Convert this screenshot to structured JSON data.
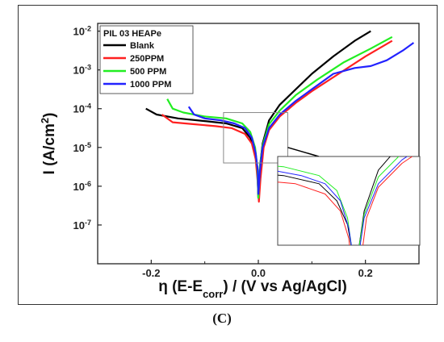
{
  "caption": "(C)",
  "colors": {
    "blank": "#000000",
    "ppm250": "#ff2020",
    "ppm500": "#22ee22",
    "ppm1000": "#2222ff",
    "box": "#888888"
  },
  "chart_data": {
    "type": "line",
    "title": "",
    "xlabel": "η (E-E_corr) / (V vs Ag/AgCl)",
    "xlabel_parts": {
      "main": "η (E-E",
      "sub": "corr",
      "rest": ") / (V vs Ag/AgCl)"
    },
    "ylabel": "I (A/cm²)",
    "ylabel_parts": {
      "main": "I (A/cm",
      "sup": "2",
      "rest": ")"
    },
    "xlim": [
      -0.3,
      0.3
    ],
    "ylim_log10": [
      -8,
      -1.8
    ],
    "y_scale": "log",
    "x_ticks": [
      -0.2,
      0.0,
      0.2
    ],
    "x_tick_labels": [
      "-0.2",
      "0.0",
      "0.2"
    ],
    "y_ticks_log10": [
      -7,
      -6,
      -5,
      -4,
      -3,
      -2
    ],
    "y_tick_labels": [
      {
        "base": "10",
        "exp": "-7"
      },
      {
        "base": "10",
        "exp": "-6"
      },
      {
        "base": "10",
        "exp": "-5"
      },
      {
        "base": "10",
        "exp": "-4"
      },
      {
        "base": "10",
        "exp": "-3"
      },
      {
        "base": "10",
        "exp": "-2"
      }
    ],
    "legend_title": "PIL 03 HEAPe",
    "legend_position": "top-left",
    "series": [
      {
        "name": "Blank",
        "color": "#000000",
        "x": [
          -0.21,
          -0.19,
          -0.15,
          -0.1,
          -0.06,
          -0.03,
          -0.015,
          -0.006,
          -0.002,
          0.0,
          0.003,
          0.008,
          0.02,
          0.04,
          0.07,
          0.1,
          0.14,
          0.18,
          0.21
        ],
        "log_y": [
          -4.0,
          -4.15,
          -4.25,
          -4.32,
          -4.38,
          -4.5,
          -4.75,
          -5.1,
          -5.5,
          -6.3,
          -5.5,
          -4.9,
          -4.3,
          -3.9,
          -3.5,
          -3.1,
          -2.65,
          -2.25,
          -2.0
        ]
      },
      {
        "name": "250PPM",
        "color": "#ff2020",
        "x": [
          -0.18,
          -0.16,
          -0.12,
          -0.08,
          -0.05,
          -0.025,
          -0.012,
          -0.005,
          -0.001,
          0.001,
          0.004,
          0.01,
          0.02,
          0.04,
          0.07,
          0.1,
          0.15,
          0.2,
          0.25
        ],
        "log_y": [
          -4.15,
          -4.35,
          -4.4,
          -4.45,
          -4.5,
          -4.65,
          -4.9,
          -5.3,
          -5.9,
          -6.4,
          -5.8,
          -5.0,
          -4.55,
          -4.2,
          -3.85,
          -3.55,
          -3.1,
          -2.65,
          -2.25
        ]
      },
      {
        "name": "500 PPM",
        "color": "#22ee22",
        "x": [
          -0.17,
          -0.16,
          -0.14,
          -0.1,
          -0.06,
          -0.03,
          -0.015,
          -0.006,
          -0.002,
          0.0,
          0.003,
          0.008,
          0.02,
          0.04,
          0.07,
          0.11,
          0.16,
          0.21,
          0.25
        ],
        "log_y": [
          -3.75,
          -4.0,
          -4.1,
          -4.2,
          -4.25,
          -4.38,
          -4.6,
          -5.0,
          -5.5,
          -6.3,
          -5.5,
          -4.95,
          -4.4,
          -4.05,
          -3.65,
          -3.25,
          -2.8,
          -2.45,
          -2.15
        ]
      },
      {
        "name": "1000 PPM",
        "color": "#2222ff",
        "x": [
          -0.13,
          -0.12,
          -0.1,
          -0.07,
          -0.045,
          -0.025,
          -0.012,
          -0.005,
          -0.001,
          0.0,
          0.003,
          0.008,
          0.02,
          0.04,
          0.07,
          0.1,
          0.14,
          0.18,
          0.21,
          0.24,
          0.27,
          0.29
        ],
        "log_y": [
          -3.95,
          -4.15,
          -4.25,
          -4.3,
          -4.38,
          -4.5,
          -4.75,
          -5.15,
          -5.6,
          -6.2,
          -5.6,
          -5.0,
          -4.5,
          -4.15,
          -3.8,
          -3.5,
          -3.1,
          -2.95,
          -2.9,
          -2.75,
          -2.5,
          -2.3
        ]
      }
    ],
    "zoom_region": {
      "xlim": [
        -0.065,
        0.055
      ],
      "ylim_log10": [
        -5.4,
        -4.1
      ]
    }
  }
}
